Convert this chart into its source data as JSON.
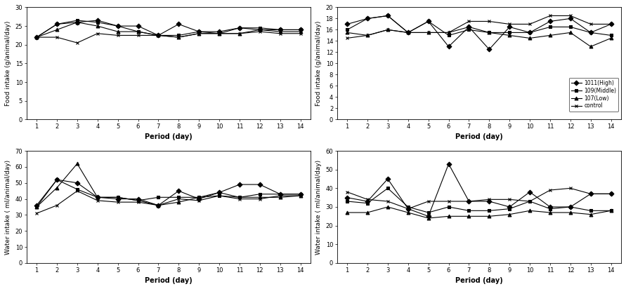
{
  "days": [
    1,
    2,
    3,
    4,
    5,
    6,
    7,
    8,
    9,
    10,
    11,
    12,
    13,
    14
  ],
  "male_food": {
    "series1": [
      22,
      25.5,
      26,
      26.5,
      25,
      25,
      22.5,
      25.5,
      23.5,
      23.5,
      24.5,
      24,
      24,
      24
    ],
    "series2": [
      22,
      25.5,
      26.5,
      26,
      25,
      23.5,
      22.5,
      22.5,
      23.5,
      23,
      24.5,
      24.5,
      24,
      24
    ],
    "series3": [
      22,
      24,
      26,
      25,
      23.5,
      23.5,
      22.5,
      22,
      23,
      23,
      23,
      24,
      23.5,
      23.5
    ],
    "series4": [
      22,
      22,
      20.5,
      23,
      22.5,
      22.5,
      22.5,
      22,
      23,
      23,
      23,
      23.5,
      23,
      23
    ]
  },
  "female_food": {
    "series1": [
      17,
      18,
      18.5,
      15.5,
      17.5,
      13,
      16.5,
      12.5,
      16.5,
      15.5,
      17.5,
      18,
      15.5,
      17
    ],
    "series2": [
      16,
      18,
      18.5,
      15.5,
      17.5,
      15,
      16,
      15.5,
      15.5,
      15.5,
      16.5,
      16.5,
      15.5,
      15
    ],
    "series3": [
      15.5,
      15,
      16,
      15.5,
      15.5,
      15.5,
      16.5,
      15.5,
      15,
      14.5,
      15,
      15.5,
      13,
      14.5
    ],
    "series4": [
      14.5,
      15,
      16,
      15.5,
      15.5,
      15.5,
      17.5,
      17.5,
      17,
      17,
      18.5,
      18.5,
      17,
      17
    ]
  },
  "male_water": {
    "series1": [
      36,
      52,
      50,
      41,
      40,
      40,
      36,
      45,
      40,
      44,
      49,
      49,
      43,
      43
    ],
    "series2": [
      35,
      52,
      46,
      41,
      41,
      39,
      41,
      41,
      41,
      42,
      41,
      43,
      43,
      43
    ],
    "series3": [
      35,
      47,
      62,
      41,
      41,
      39,
      36,
      38,
      41,
      44,
      41,
      41,
      41,
      42
    ],
    "series4": [
      31,
      36,
      45,
      39,
      38,
      38,
      36,
      40,
      39,
      42,
      40,
      40,
      42,
      42
    ]
  },
  "female_water": {
    "series1": [
      35,
      33,
      45,
      29,
      25,
      53,
      33,
      33,
      30,
      38,
      30,
      30,
      37,
      37
    ],
    "series2": [
      33,
      32,
      40,
      30,
      27,
      30,
      28,
      28,
      29,
      33,
      29,
      30,
      28,
      28
    ],
    "series3": [
      27,
      27,
      30,
      27,
      24,
      25,
      25,
      25,
      26,
      28,
      27,
      27,
      26,
      28
    ],
    "series4": [
      38,
      34,
      33,
      29,
      33,
      33,
      33,
      34,
      34,
      33,
      39,
      40,
      37,
      37
    ]
  },
  "legend_labels": [
    "1011(High)",
    "109(Middle)",
    "107(Low)",
    "control"
  ],
  "food_ylabel": "Food intake (g/animal/day)",
  "water_ylabel": "Water intake ( ml/animal/day)",
  "xlabel": "Period (day)",
  "male_food_ylim": [
    0,
    30
  ],
  "female_food_ylim": [
    0,
    20
  ],
  "male_water_ylim": [
    0,
    70
  ],
  "female_water_ylim": [
    0,
    60
  ],
  "male_food_yticks": [
    0,
    5,
    10,
    15,
    20,
    25,
    30
  ],
  "female_food_yticks": [
    0,
    2,
    4,
    6,
    8,
    10,
    12,
    14,
    16,
    18,
    20
  ],
  "male_water_yticks": [
    0,
    10,
    20,
    30,
    40,
    50,
    60,
    70
  ],
  "female_water_yticks": [
    0,
    10,
    20,
    30,
    40,
    50,
    60
  ]
}
